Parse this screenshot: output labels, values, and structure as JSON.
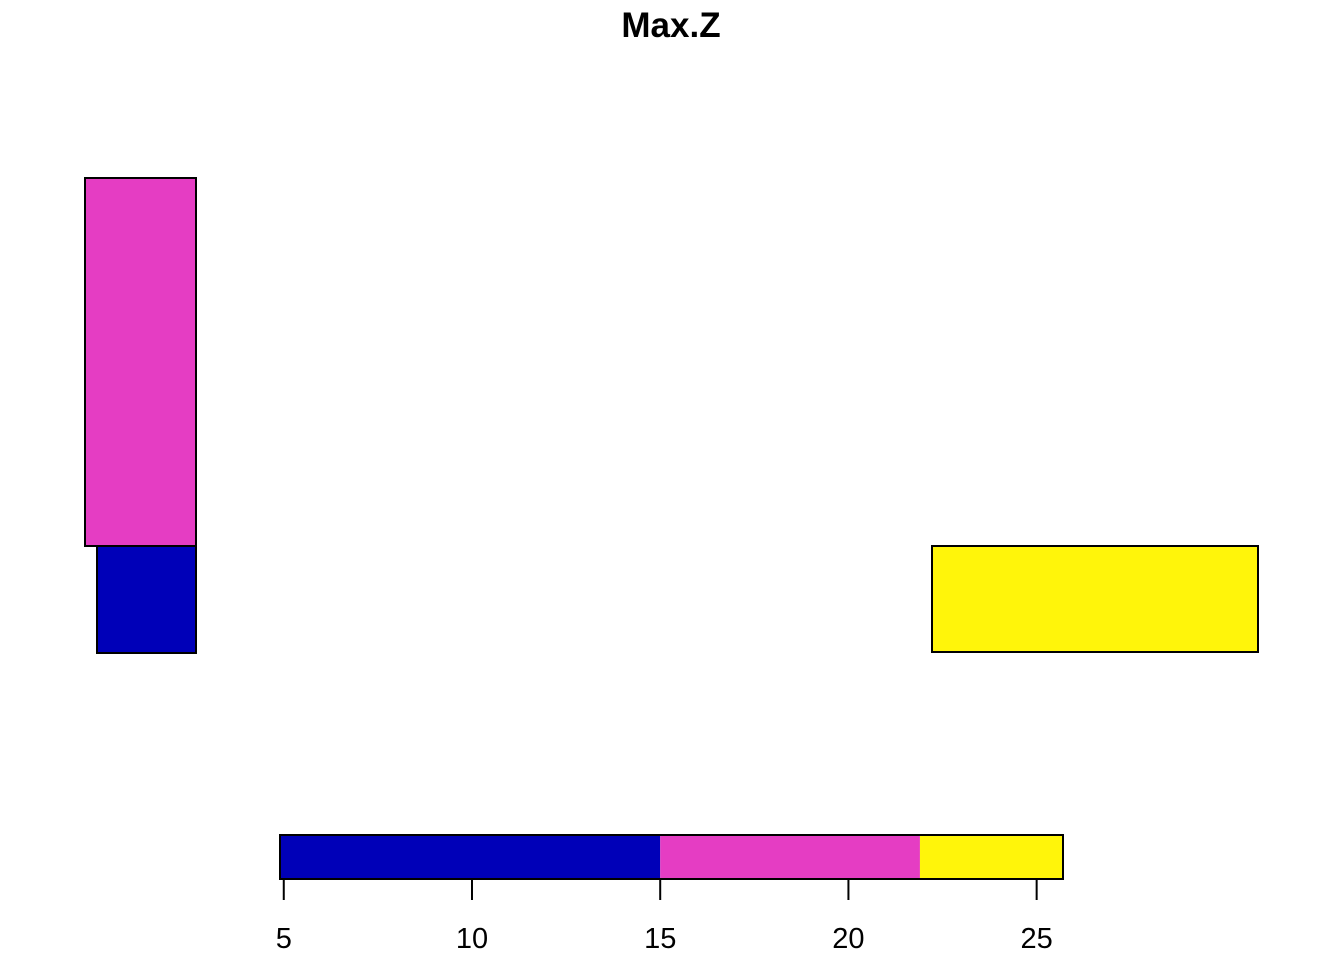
{
  "chart_data": {
    "type": "heatmap",
    "title": "Max.Z",
    "map_cells": [
      {
        "name": "polygon-magenta-tall",
        "value": 20,
        "color": "#E53DC3"
      },
      {
        "name": "polygon-blue-small",
        "value": 10,
        "color": "#0000B8"
      },
      {
        "name": "polygon-yellow-wide",
        "value": 24,
        "color": "#FFF50A"
      }
    ],
    "legend": {
      "placement": "bottom",
      "range": [
        4.9,
        25.7
      ],
      "ticks": [
        "5",
        "10",
        "15",
        "20",
        "25"
      ],
      "tick_values": [
        5,
        10,
        15,
        20,
        25
      ],
      "bins": [
        {
          "from": 4.9,
          "to": 15,
          "color": "#0000B8"
        },
        {
          "from": 15,
          "to": 21.9,
          "color": "#E53DC3"
        },
        {
          "from": 21.9,
          "to": 25.7,
          "color": "#FFF50A"
        }
      ]
    }
  }
}
